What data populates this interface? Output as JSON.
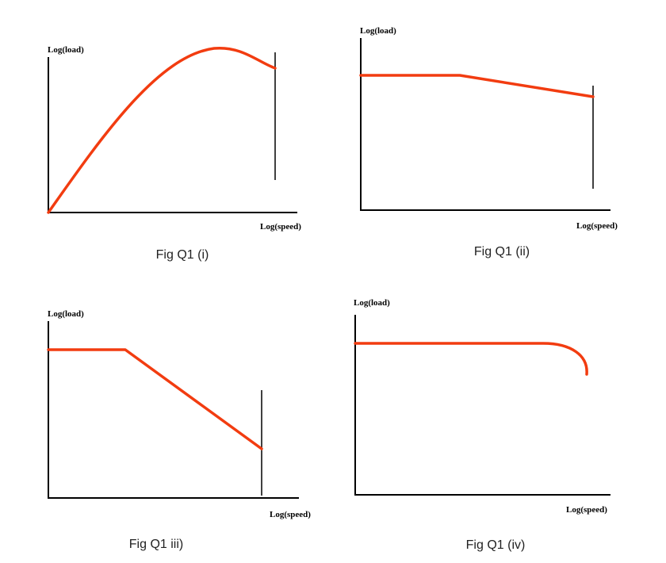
{
  "figures": [
    {
      "y_label": "Log(load)",
      "x_label": "Log(speed)",
      "caption": "Fig Q1 (i)"
    },
    {
      "y_label": "Log(load)",
      "x_label": "Log(speed)",
      "caption": "Fig Q1 (ii)"
    },
    {
      "y_label": "Log(load)",
      "x_label": "Log(speed)",
      "caption": "Fig Q1 iii)"
    },
    {
      "y_label": "Log(load)",
      "x_label": "Log(speed)",
      "caption": "Fig Q1 (iv)"
    }
  ]
}
